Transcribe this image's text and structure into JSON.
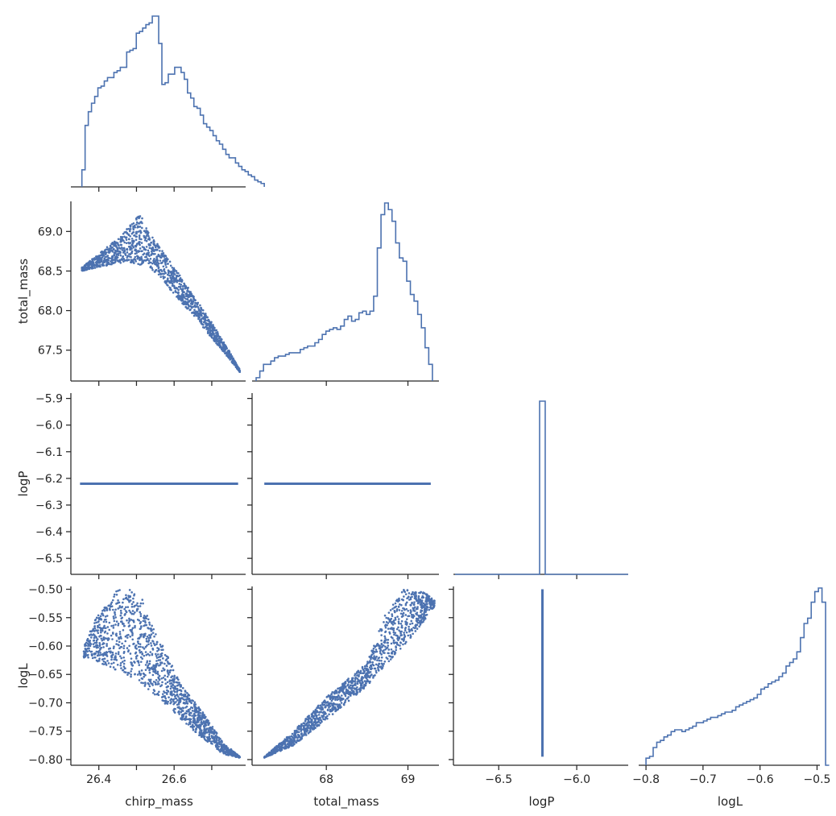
{
  "chart_data": {
    "type": "scatter",
    "layout": "corner",
    "color": "#4c72b0",
    "axis_color": "#262626",
    "variables": [
      {
        "name": "chirp_mass",
        "label": "chirp_mass",
        "range": [
          26.33,
          26.79
        ],
        "ticks": [
          26.4,
          26.5,
          26.6,
          26.7
        ],
        "tick_labels": [
          "26.4",
          "",
          "26.6",
          ""
        ]
      },
      {
        "name": "total_mass",
        "label": "total_mass",
        "range": [
          67.11,
          69.38
        ],
        "ticks": [
          67.5,
          68.0,
          68.5,
          69.0
        ],
        "tick_labels": [
          "67.5",
          "68.0",
          "68.5",
          "69.0"
        ]
      },
      {
        "name": "logP",
        "label": "logP",
        "range": [
          -6.56,
          -5.88
        ],
        "ticks": [
          -6.5,
          -6.4,
          -6.3,
          -6.2,
          -6.1,
          -6.0,
          -5.9
        ],
        "tick_labels": [
          "−6.5",
          "−6.4",
          "−6.3",
          "−6.2",
          "−6.1",
          "−6.0",
          "−5.9"
        ]
      },
      {
        "name": "logL",
        "label": "logL",
        "range": [
          -0.81,
          -0.495
        ],
        "ticks": [
          -0.8,
          -0.75,
          -0.7,
          -0.65,
          -0.6,
          -0.55,
          -0.5
        ],
        "tick_labels": [
          "−0.80",
          "−0.75",
          "−0.70",
          "−0.65",
          "−0.60",
          "−0.55",
          "−0.50"
        ]
      }
    ],
    "bottom_axes": [
      {
        "name": "chirp_mass",
        "label": "chirp_mass",
        "range": [
          26.33,
          26.79
        ],
        "ticks": [
          26.4,
          26.5,
          26.6,
          26.7
        ],
        "tick_labels": [
          "26.4",
          "",
          "26.6",
          ""
        ]
      },
      {
        "name": "total_mass",
        "label": "total_mass",
        "range": [
          67.11,
          69.38
        ],
        "ticks": [
          67.0,
          68.0,
          69.0
        ],
        "tick_labels": [
          "",
          "68",
          "69"
        ]
      },
      {
        "name": "logP",
        "label": "logP",
        "range": [
          -6.78,
          -5.67
        ],
        "ticks": [
          -6.5,
          -6.0
        ],
        "tick_labels": [
          "−6.5",
          "−6.0"
        ]
      },
      {
        "name": "logL",
        "label": "logL",
        "range": [
          -0.81,
          -0.495
        ],
        "ticks": [
          -0.8,
          -0.7,
          -0.6,
          -0.5
        ],
        "tick_labels": [
          "−0.8",
          "−0.7",
          "−0.6",
          "−0.5"
        ]
      }
    ],
    "diagonal_histograms": [
      {
        "variable": "chirp_mass",
        "edges_start": 26.355,
        "bin_width": 0.0085,
        "counts": [
          10,
          36,
          44,
          49,
          53,
          58,
          59,
          62,
          64,
          64,
          67,
          68,
          70,
          70,
          79,
          80,
          81,
          90,
          91,
          93,
          95,
          96,
          100,
          100,
          84,
          60,
          61,
          66,
          66,
          70,
          70,
          67,
          63,
          55,
          52,
          47,
          46,
          42,
          37,
          35,
          33,
          30,
          27,
          25,
          22,
          19,
          17,
          17,
          14,
          12,
          10,
          9,
          7,
          6,
          4,
          3,
          2
        ]
      },
      {
        "variable": "total_mass",
        "edges_start": 67.14,
        "bin_width": 0.045,
        "counts": [
          2,
          6,
          10,
          10,
          12,
          14,
          15,
          15,
          16,
          17,
          17,
          17,
          19,
          20,
          21,
          21,
          23,
          25,
          28,
          30,
          31,
          32,
          31,
          33,
          37,
          39,
          36,
          37,
          41,
          42,
          40,
          42,
          51,
          80,
          100,
          107,
          103,
          96,
          83,
          74,
          72,
          60,
          52,
          48,
          40,
          32,
          20,
          10
        ]
      },
      {
        "variable": "logP",
        "value": -6.22,
        "spike_half_width": 0.018,
        "spike_height": 1.0
      },
      {
        "variable": "logL",
        "edges_start": -0.8,
        "bin_width": 0.0063,
        "counts": [
          4,
          5,
          10,
          13,
          14,
          16,
          17,
          19,
          20,
          20,
          19,
          20,
          21,
          22,
          24,
          24,
          25,
          26,
          27,
          27,
          28,
          29,
          30,
          30,
          31,
          33,
          34,
          35,
          36,
          37,
          38,
          40,
          43,
          44,
          46,
          47,
          48,
          50,
          52,
          56,
          58,
          60,
          64,
          72,
          80,
          83,
          92,
          98,
          100,
          92,
          0
        ]
      }
    ],
    "scatter_panels": [
      {
        "x": "chirp_mass",
        "y": "total_mass",
        "description_points": [
          [
            26.38,
            68.56
          ],
          [
            26.46,
            68.9
          ],
          [
            26.51,
            69.22
          ],
          [
            26.55,
            68.75
          ],
          [
            26.62,
            68.2
          ],
          [
            26.7,
            67.6
          ],
          [
            26.77,
            67.23
          ]
        ]
      },
      {
        "x": "chirp_mass",
        "y": "logP",
        "constant_y": -6.22,
        "x_span": [
          26.35,
          26.77
        ]
      },
      {
        "x": "total_mass",
        "y": "logP",
        "constant_y": -6.22,
        "x_span": [
          67.24,
          69.28
        ]
      },
      {
        "x": "chirp_mass",
        "y": "logL",
        "description_points": [
          [
            26.37,
            -0.6
          ],
          [
            26.45,
            -0.5
          ],
          [
            26.52,
            -0.52
          ],
          [
            26.6,
            -0.66
          ],
          [
            26.7,
            -0.75
          ],
          [
            26.77,
            -0.795
          ]
        ]
      },
      {
        "x": "total_mass",
        "y": "logL",
        "description_points": [
          [
            67.24,
            -0.795
          ],
          [
            67.8,
            -0.7
          ],
          [
            68.3,
            -0.63
          ],
          [
            68.75,
            -0.55
          ],
          [
            69.0,
            -0.5
          ],
          [
            69.3,
            -0.52
          ]
        ]
      },
      {
        "x": "logP",
        "y": "logL",
        "constant_x": -6.22,
        "y_span": [
          -0.795,
          -0.5
        ]
      }
    ]
  }
}
